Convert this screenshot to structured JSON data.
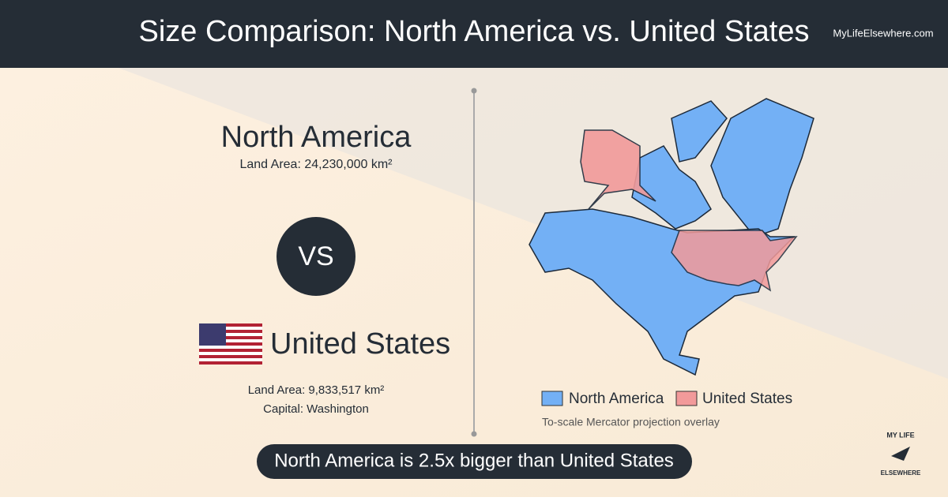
{
  "header": {
    "title": "Size Comparison: North America vs. United States",
    "site": "MyLifeElsewhere.com"
  },
  "left": {
    "region_name": "North America",
    "region_area": "Land Area: 24,230,000 km²",
    "vs": "VS",
    "country_name": "United States",
    "country_area": "Land Area: 9,833,517 km²",
    "capital": "Capital: Washington"
  },
  "map": {
    "legend": [
      "North America",
      "United States"
    ],
    "note": "To-scale Mercator projection overlay"
  },
  "banner": "North America is 2.5x bigger than United States",
  "logo": {
    "top": "MY LIFE",
    "bottom": "ELSEWHERE"
  }
}
